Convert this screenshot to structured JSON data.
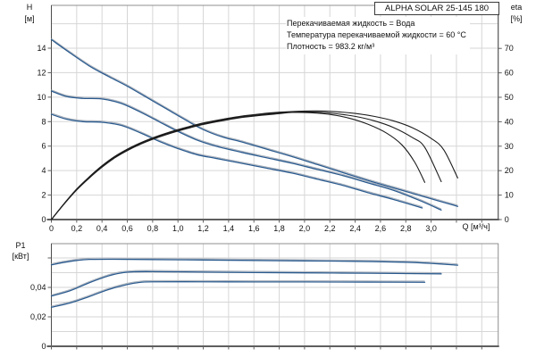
{
  "header": {
    "pump_name": "ALPHA SOLAR 25-145  180",
    "conditions": [
      "Перекачиваемая жидкость = Вода",
      "Температура перекачиваемой жидкости = 60 °C",
      "Плотность = 983.2 кг/м³"
    ]
  },
  "colors": {
    "curve_blue": "#2a5a8e",
    "curve_black": "#1c1c1c",
    "curve_shadow": "#a9b0ba",
    "grid": "#d6d6d6",
    "frame": "#8f8f8f",
    "axis": "#5f5f5f",
    "text": "#111111"
  },
  "chart_data": [
    {
      "id": "hq",
      "type": "line",
      "title": "ALPHA SOLAR 25-145  180",
      "axes": {
        "x": {
          "label": "Q [м³/ч]",
          "min": 0,
          "max": 3.53,
          "grid_step": 0.2,
          "tick_values": [
            0,
            0.2,
            0.4,
            0.6,
            0.8,
            1.0,
            1.2,
            1.4,
            1.6,
            1.8,
            2.0,
            2.2,
            2.4,
            2.6,
            2.8,
            3.0
          ],
          "tick_labels": [
            "0",
            "0,2",
            "0,4",
            "0,6",
            "0,8",
            "1,0",
            "1,2",
            "1,4",
            "1,6",
            "1,8",
            "2,0",
            "2,2",
            "2,4",
            "2,6",
            "2,8",
            "3,0"
          ]
        },
        "left": {
          "label": "H",
          "unit": "[м]",
          "min": 0,
          "max": 17.5,
          "grid_step": 2,
          "tick_values": [
            0,
            2,
            4,
            6,
            8,
            10,
            12,
            14
          ],
          "tick_labels": [
            "0",
            "2",
            "4",
            "6",
            "8",
            "10",
            "12",
            "14"
          ]
        },
        "right": {
          "label": "eta",
          "unit": "[%]",
          "min": 0,
          "max": 87.6,
          "tick_values": [
            0,
            10,
            20,
            30,
            40,
            50,
            60,
            70
          ],
          "tick_labels": [
            "0",
            "10",
            "20",
            "30",
            "40",
            "50",
            "60",
            "70"
          ]
        }
      },
      "series": [
        {
          "name": "H-curve-speed-3",
          "axis": "left",
          "color": "#2a5a8e",
          "width": 1.3,
          "shadow": true,
          "points": [
            [
              0,
              14.7
            ],
            [
              0.15,
              13.6
            ],
            [
              0.3,
              12.55
            ],
            [
              0.45,
              11.7
            ],
            [
              0.6,
              10.9
            ],
            [
              0.75,
              10.0
            ],
            [
              0.9,
              9.1
            ],
            [
              1.05,
              8.2
            ],
            [
              1.2,
              7.35
            ],
            [
              1.35,
              6.75
            ],
            [
              1.5,
              6.35
            ],
            [
              1.7,
              5.75
            ],
            [
              1.9,
              5.15
            ],
            [
              2.1,
              4.5
            ],
            [
              2.3,
              3.85
            ],
            [
              2.5,
              3.2
            ],
            [
              2.7,
              2.6
            ],
            [
              2.9,
              2.0
            ],
            [
              3.05,
              1.55
            ],
            [
              3.21,
              1.08
            ]
          ]
        },
        {
          "name": "H-curve-speed-2",
          "axis": "left",
          "color": "#2a5a8e",
          "width": 1.3,
          "shadow": true,
          "points": [
            [
              0,
              10.5
            ],
            [
              0.12,
              10.05
            ],
            [
              0.25,
              9.9
            ],
            [
              0.4,
              9.85
            ],
            [
              0.55,
              9.5
            ],
            [
              0.7,
              8.8
            ],
            [
              0.85,
              8.0
            ],
            [
              1.0,
              7.2
            ],
            [
              1.15,
              6.5
            ],
            [
              1.3,
              6.0
            ],
            [
              1.5,
              5.5
            ],
            [
              1.7,
              5.05
            ],
            [
              1.9,
              4.6
            ],
            [
              2.1,
              4.1
            ],
            [
              2.3,
              3.6
            ],
            [
              2.5,
              3.0
            ],
            [
              2.7,
              2.4
            ],
            [
              2.9,
              1.6
            ],
            [
              3.08,
              0.78
            ]
          ]
        },
        {
          "name": "H-curve-speed-1",
          "axis": "left",
          "color": "#2a5a8e",
          "width": 1.3,
          "shadow": true,
          "points": [
            [
              0,
              8.6
            ],
            [
              0.12,
              8.2
            ],
            [
              0.25,
              8.0
            ],
            [
              0.4,
              7.95
            ],
            [
              0.55,
              7.7
            ],
            [
              0.7,
              7.1
            ],
            [
              0.85,
              6.4
            ],
            [
              1.0,
              5.8
            ],
            [
              1.15,
              5.3
            ],
            [
              1.3,
              5.0
            ],
            [
              1.5,
              4.6
            ],
            [
              1.7,
              4.2
            ],
            [
              1.9,
              3.8
            ],
            [
              2.1,
              3.3
            ],
            [
              2.3,
              2.8
            ],
            [
              2.5,
              2.2
            ],
            [
              2.7,
              1.65
            ],
            [
              2.93,
              0.95
            ]
          ]
        },
        {
          "name": "eta-curve-speed-3",
          "axis": "right",
          "color": "#1c1c1c",
          "width": 1.1,
          "shadow": false,
          "points": [
            [
              0,
              0
            ],
            [
              0.1,
              6.5
            ],
            [
              0.2,
              12.5
            ],
            [
              0.3,
              17.5
            ],
            [
              0.4,
              22
            ],
            [
              0.5,
              25.8
            ],
            [
              0.6,
              28.8
            ],
            [
              0.7,
              31.3
            ],
            [
              0.8,
              33.4
            ],
            [
              0.9,
              35.2
            ],
            [
              1.0,
              36.8
            ],
            [
              1.1,
              38.2
            ],
            [
              1.2,
              39.5
            ],
            [
              1.35,
              41.0
            ],
            [
              1.5,
              42.3
            ],
            [
              1.65,
              43.2
            ],
            [
              1.8,
              43.9
            ],
            [
              1.95,
              44.3
            ],
            [
              2.1,
              44.4
            ],
            [
              2.25,
              44.1
            ],
            [
              2.4,
              43.4
            ],
            [
              2.55,
              42.2
            ],
            [
              2.7,
              40.4
            ],
            [
              2.85,
              37.6
            ],
            [
              3.0,
              33.2
            ],
            [
              3.1,
              28.5
            ],
            [
              3.21,
              17.0
            ]
          ]
        },
        {
          "name": "eta-curve-speed-2",
          "axis": "right",
          "color": "#1c1c1c",
          "width": 1.1,
          "shadow": false,
          "points": [
            [
              0,
              0
            ],
            [
              0.1,
              6.4
            ],
            [
              0.2,
              12.3
            ],
            [
              0.3,
              17.3
            ],
            [
              0.4,
              21.7
            ],
            [
              0.5,
              25.5
            ],
            [
              0.6,
              28.5
            ],
            [
              0.7,
              31.0
            ],
            [
              0.8,
              33.1
            ],
            [
              0.9,
              34.9
            ],
            [
              1.0,
              36.5
            ],
            [
              1.1,
              37.9
            ],
            [
              1.2,
              39.2
            ],
            [
              1.35,
              40.7
            ],
            [
              1.5,
              42.0
            ],
            [
              1.65,
              42.9
            ],
            [
              1.8,
              43.6
            ],
            [
              1.95,
              44.0
            ],
            [
              2.1,
              43.9
            ],
            [
              2.25,
              43.3
            ],
            [
              2.4,
              42.2
            ],
            [
              2.55,
              40.4
            ],
            [
              2.7,
              37.7
            ],
            [
              2.85,
              33.6
            ],
            [
              2.95,
              29.5
            ],
            [
              3.08,
              15.5
            ]
          ]
        },
        {
          "name": "eta-curve-speed-1",
          "axis": "right",
          "color": "#1c1c1c",
          "width": 1.1,
          "shadow": false,
          "points": [
            [
              0,
              0
            ],
            [
              0.1,
              6.3
            ],
            [
              0.2,
              12.1
            ],
            [
              0.3,
              17.0
            ],
            [
              0.4,
              21.4
            ],
            [
              0.5,
              25.2
            ],
            [
              0.6,
              28.2
            ],
            [
              0.7,
              30.7
            ],
            [
              0.8,
              32.8
            ],
            [
              0.9,
              34.6
            ],
            [
              1.0,
              36.2
            ],
            [
              1.1,
              37.6
            ],
            [
              1.2,
              38.9
            ],
            [
              1.35,
              40.4
            ],
            [
              1.5,
              41.7
            ],
            [
              1.65,
              42.6
            ],
            [
              1.8,
              43.3
            ],
            [
              1.9,
              43.8
            ],
            [
              2.05,
              43.7
            ],
            [
              2.2,
              43.0
            ],
            [
              2.35,
              41.5
            ],
            [
              2.5,
              39.0
            ],
            [
              2.65,
              35.3
            ],
            [
              2.77,
              30.5
            ],
            [
              2.87,
              23.5
            ],
            [
              2.95,
              15.2
            ]
          ]
        }
      ]
    },
    {
      "id": "p1",
      "type": "line",
      "title": "",
      "axes": {
        "x": {
          "label": "",
          "min": 0,
          "max": 3.53,
          "grid_step": 0.2,
          "tick_values": [],
          "tick_labels": []
        },
        "left": {
          "label": "P1",
          "unit": "[кВт]",
          "min": 0,
          "max": 0.0697,
          "grid_step": 0.01,
          "tick_values": [
            0,
            0.02,
            0.04,
            0.06
          ],
          "tick_labels": [
            "0",
            "0,02",
            "0,04",
            ""
          ]
        }
      },
      "series": [
        {
          "name": "P1-curve-speed-3",
          "axis": "left",
          "color": "#2a5a8e",
          "width": 1.3,
          "shadow": true,
          "points": [
            [
              0,
              0.0553
            ],
            [
              0.1,
              0.057
            ],
            [
              0.2,
              0.0583
            ],
            [
              0.3,
              0.059
            ],
            [
              0.5,
              0.0591
            ],
            [
              0.8,
              0.0589
            ],
            [
              1.2,
              0.0586
            ],
            [
              1.6,
              0.0583
            ],
            [
              2.0,
              0.058
            ],
            [
              2.4,
              0.0577
            ],
            [
              2.8,
              0.0571
            ],
            [
              3.0,
              0.0563
            ],
            [
              3.21,
              0.0551
            ]
          ]
        },
        {
          "name": "P1-curve-speed-2",
          "axis": "left",
          "color": "#2a5a8e",
          "width": 1.3,
          "shadow": true,
          "points": [
            [
              0,
              0.0341
            ],
            [
              0.15,
              0.0378
            ],
            [
              0.3,
              0.0432
            ],
            [
              0.45,
              0.0478
            ],
            [
              0.55,
              0.0498
            ],
            [
              0.65,
              0.0506
            ],
            [
              0.8,
              0.0507
            ],
            [
              1.2,
              0.0504
            ],
            [
              1.6,
              0.0501
            ],
            [
              2.0,
              0.0499
            ],
            [
              2.5,
              0.0496
            ],
            [
              2.8,
              0.0494
            ],
            [
              3.08,
              0.0492
            ]
          ]
        },
        {
          "name": "P1-curve-speed-1",
          "axis": "left",
          "color": "#2a5a8e",
          "width": 1.3,
          "shadow": true,
          "points": [
            [
              0,
              0.0265
            ],
            [
              0.15,
              0.0295
            ],
            [
              0.3,
              0.0338
            ],
            [
              0.45,
              0.0385
            ],
            [
              0.6,
              0.042
            ],
            [
              0.7,
              0.0434
            ],
            [
              0.8,
              0.0438
            ],
            [
              1.2,
              0.0438
            ],
            [
              1.6,
              0.0437
            ],
            [
              2.0,
              0.0437
            ],
            [
              2.5,
              0.0436
            ],
            [
              2.95,
              0.0435
            ]
          ]
        }
      ]
    }
  ]
}
